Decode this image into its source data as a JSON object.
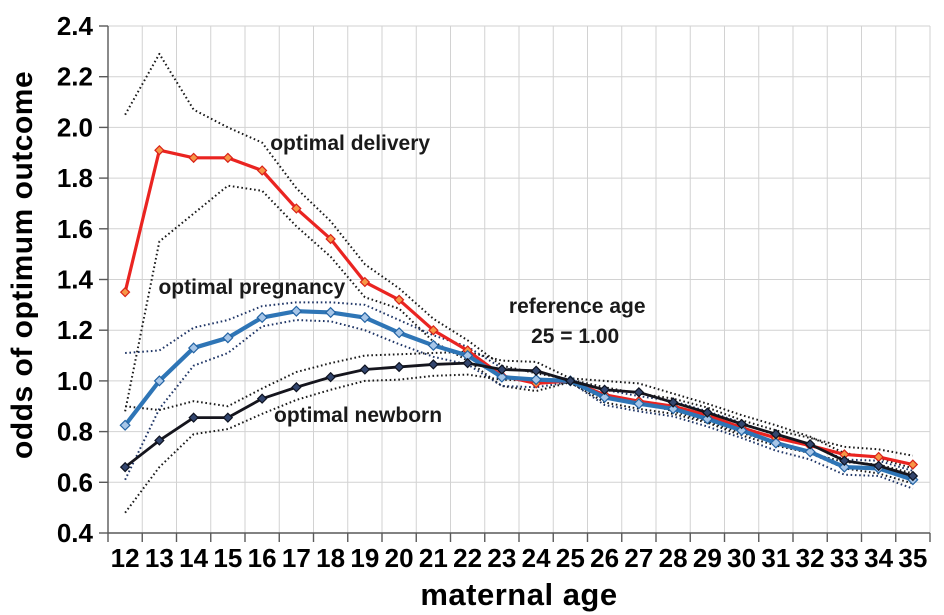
{
  "figure": {
    "background": "#ffffff"
  },
  "chart_data": {
    "type": "line",
    "title": "",
    "xlabel": "maternal age",
    "ylabel": "odds of optimum outcome",
    "x": [
      12,
      13,
      14,
      15,
      16,
      17,
      18,
      19,
      20,
      21,
      22,
      23,
      24,
      25,
      26,
      27,
      28,
      29,
      30,
      31,
      32,
      33,
      34,
      35
    ],
    "ylim": [
      0.4,
      2.4
    ],
    "ytick_step": 0.2,
    "ytick_labels": [
      "0.4",
      "0.6",
      "0.8",
      "1.0",
      "1.2",
      "1.4",
      "1.6",
      "1.8",
      "2.0",
      "2.2",
      "2.4"
    ],
    "grid": true,
    "legend_position": "none",
    "style": {
      "grid_color": "#d2d2d2",
      "axis_color": "#595959",
      "text_color": "#000000",
      "annotation_color": "#1a1a1a"
    },
    "series": [
      {
        "id": "optimal-delivery-upper-ci",
        "name": "optimal delivery upper CI",
        "role": "ci",
        "dotted": true,
        "color": "#1a1a1a",
        "width": 2,
        "values": [
          2.05,
          2.29,
          2.07,
          2.0,
          1.94,
          1.76,
          1.63,
          1.46,
          1.365,
          1.245,
          1.16,
          1.06,
          1.03,
          1.005,
          0.975,
          0.95,
          0.93,
          0.895,
          0.845,
          0.805,
          0.775,
          0.74,
          0.73,
          0.705
        ]
      },
      {
        "id": "optimal-delivery-lower-ci",
        "name": "optimal delivery lower CI",
        "role": "ci",
        "dotted": true,
        "color": "#1a1a1a",
        "width": 2,
        "values": [
          0.88,
          1.55,
          1.66,
          1.77,
          1.75,
          1.61,
          1.49,
          1.33,
          1.285,
          1.155,
          1.08,
          0.98,
          0.96,
          0.995,
          0.915,
          0.89,
          0.87,
          0.835,
          0.785,
          0.745,
          0.715,
          0.68,
          0.67,
          0.635
        ]
      },
      {
        "id": "optimal-pregnancy-upper-ci",
        "name": "optimal pregnancy upper CI",
        "role": "ci",
        "dotted": true,
        "color": "#1f3566",
        "width": 2,
        "values": [
          1.11,
          1.12,
          1.21,
          1.24,
          1.295,
          1.31,
          1.31,
          1.3,
          1.24,
          1.18,
          1.135,
          1.05,
          1.035,
          1.005,
          0.965,
          0.94,
          0.92,
          0.88,
          0.835,
          0.785,
          0.75,
          0.69,
          0.685,
          0.645
        ]
      },
      {
        "id": "optimal-pregnancy-lower-ci",
        "name": "optimal pregnancy lower CI",
        "role": "ci",
        "dotted": true,
        "color": "#1f3566",
        "width": 2,
        "values": [
          0.61,
          0.89,
          1.06,
          1.11,
          1.215,
          1.24,
          1.235,
          1.2,
          1.145,
          1.095,
          1.065,
          0.98,
          0.975,
          0.995,
          0.905,
          0.88,
          0.86,
          0.82,
          0.775,
          0.725,
          0.69,
          0.63,
          0.625,
          0.575
        ]
      },
      {
        "id": "optimal-newborn-upper-ci",
        "name": "optimal newborn upper CI",
        "role": "ci",
        "dotted": true,
        "color": "#1a1a1a",
        "width": 2,
        "values": [
          0.9,
          0.885,
          0.92,
          0.9,
          0.97,
          1.035,
          1.07,
          1.1,
          1.105,
          1.11,
          1.115,
          1.08,
          1.075,
          1.01,
          1.0,
          0.99,
          0.95,
          0.91,
          0.865,
          0.825,
          0.78,
          0.715,
          0.695,
          0.655
        ]
      },
      {
        "id": "optimal-newborn-lower-ci",
        "name": "optimal newborn lower CI",
        "role": "ci",
        "dotted": true,
        "color": "#1a1a1a",
        "width": 2,
        "values": [
          0.48,
          0.66,
          0.79,
          0.81,
          0.87,
          0.925,
          0.965,
          1.0,
          1.005,
          1.02,
          1.025,
          1.005,
          1.0,
          0.99,
          0.93,
          0.92,
          0.88,
          0.84,
          0.795,
          0.755,
          0.715,
          0.655,
          0.635,
          0.595
        ]
      },
      {
        "id": "optimal-delivery",
        "name": "optimal delivery",
        "role": "main",
        "color": "#ea2421",
        "width": 3.2,
        "marker": true,
        "marker_fill": "#f79646",
        "marker_stroke": "#d92118",
        "marker_size": 4.4,
        "values": [
          1.35,
          1.91,
          1.88,
          1.88,
          1.83,
          1.68,
          1.56,
          1.39,
          1.32,
          1.2,
          1.12,
          1.02,
          0.99,
          1.0,
          0.945,
          0.92,
          0.9,
          0.865,
          0.815,
          0.775,
          0.745,
          0.71,
          0.7,
          0.67
        ]
      },
      {
        "id": "optimal-pregnancy",
        "name": "optimal pregnancy",
        "role": "main",
        "color": "#2e75b6",
        "width": 4.2,
        "marker": true,
        "marker_fill": "#a7c6e8",
        "marker_stroke": "#2464a4",
        "marker_size": 4.8,
        "values": [
          0.825,
          1.0,
          1.13,
          1.17,
          1.25,
          1.275,
          1.27,
          1.25,
          1.19,
          1.14,
          1.1,
          1.015,
          1.005,
          1.0,
          0.935,
          0.91,
          0.89,
          0.85,
          0.805,
          0.755,
          0.72,
          0.66,
          0.655,
          0.61
        ]
      },
      {
        "id": "optimal-newborn",
        "name": "optimal newborn",
        "role": "main",
        "color": "#15151d",
        "width": 2.8,
        "marker": true,
        "marker_fill": "#33466e",
        "marker_stroke": "#0d1220",
        "marker_size": 4.4,
        "values": [
          0.66,
          0.765,
          0.855,
          0.855,
          0.93,
          0.975,
          1.015,
          1.045,
          1.055,
          1.065,
          1.07,
          1.045,
          1.04,
          1.0,
          0.965,
          0.955,
          0.915,
          0.875,
          0.83,
          0.79,
          0.75,
          0.685,
          0.665,
          0.625
        ]
      }
    ],
    "annotations": [
      {
        "id": "optimal-delivery-label",
        "text": "optimal delivery",
        "x": 18.57,
        "y": 1.938
      },
      {
        "id": "optimal-pregnancy-label",
        "text": "optimal pregnancy",
        "x": 15.7,
        "y": 1.37
      },
      {
        "id": "optimal-newborn-label",
        "text": "optimal newborn",
        "x": 18.8,
        "y": 0.866
      },
      {
        "id": "reference-age-label",
        "text": "reference age",
        "x": 25.2,
        "y": 1.295
      },
      {
        "id": "reference-value-label",
        "text": "25 = 1.00",
        "x": 25.14,
        "y": 1.177
      }
    ]
  }
}
